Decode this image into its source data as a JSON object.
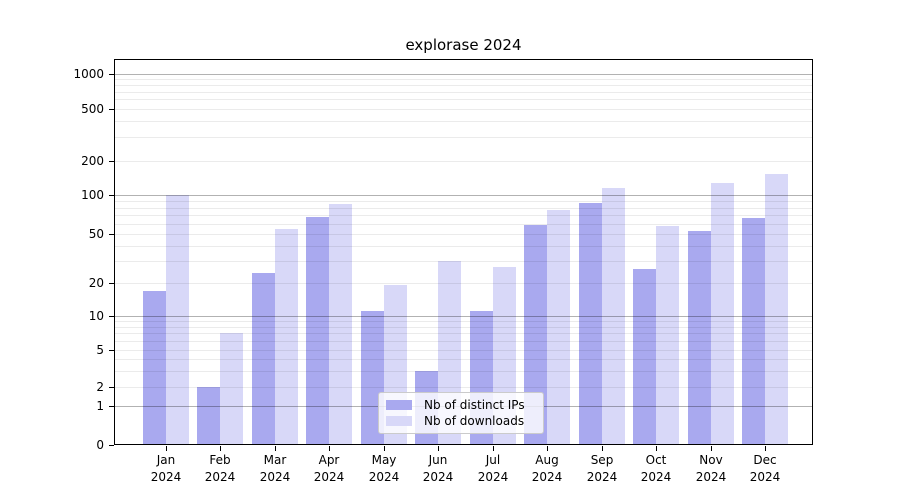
{
  "title": "explorase 2024",
  "colors": {
    "bar_distinct_ips": "#a9a9ef",
    "bar_downloads": "#d8d8f8",
    "grid_major": "rgba(0,0,0,0.30)",
    "grid_minor": "rgba(0,0,0,0.08)",
    "axis": "#000000",
    "legend_border": "#cbcbcb"
  },
  "legend": {
    "items": [
      {
        "label": "Nb of distinct IPs",
        "color": "#a9a9ef"
      },
      {
        "label": "Nb of downloads",
        "color": "#d8d8f8"
      }
    ]
  },
  "chart_data": {
    "type": "bar",
    "title": "explorase 2024",
    "categories": [
      "Jan 2024",
      "Feb 2024",
      "Mar 2024",
      "Apr 2024",
      "May 2024",
      "Jun 2024",
      "Jul 2024",
      "Aug 2024",
      "Sep 2024",
      "Oct 2024",
      "Nov 2024",
      "Dec 2024"
    ],
    "series": [
      {
        "name": "Nb of distinct IPs",
        "color": "#a9a9ef",
        "values": [
          17,
          2,
          24,
          68,
          11,
          3,
          11,
          59,
          86,
          26,
          53,
          67
        ]
      },
      {
        "name": "Nb of downloads",
        "color": "#d8d8f8",
        "values": [
          100,
          7,
          55,
          85,
          19,
          30,
          27,
          77,
          114,
          58,
          126,
          152
        ]
      }
    ],
    "yscale": "symlog",
    "ylim": [
      0,
      1330
    ],
    "yticks": [
      0,
      1,
      2,
      5,
      10,
      20,
      50,
      100,
      200,
      500,
      1000
    ],
    "ytick_labels": [
      "0",
      "1",
      "2",
      "5",
      "10",
      "20",
      "50",
      "100",
      "200",
      "500",
      "1000"
    ],
    "grid": "both",
    "legend_position": "lower center"
  }
}
